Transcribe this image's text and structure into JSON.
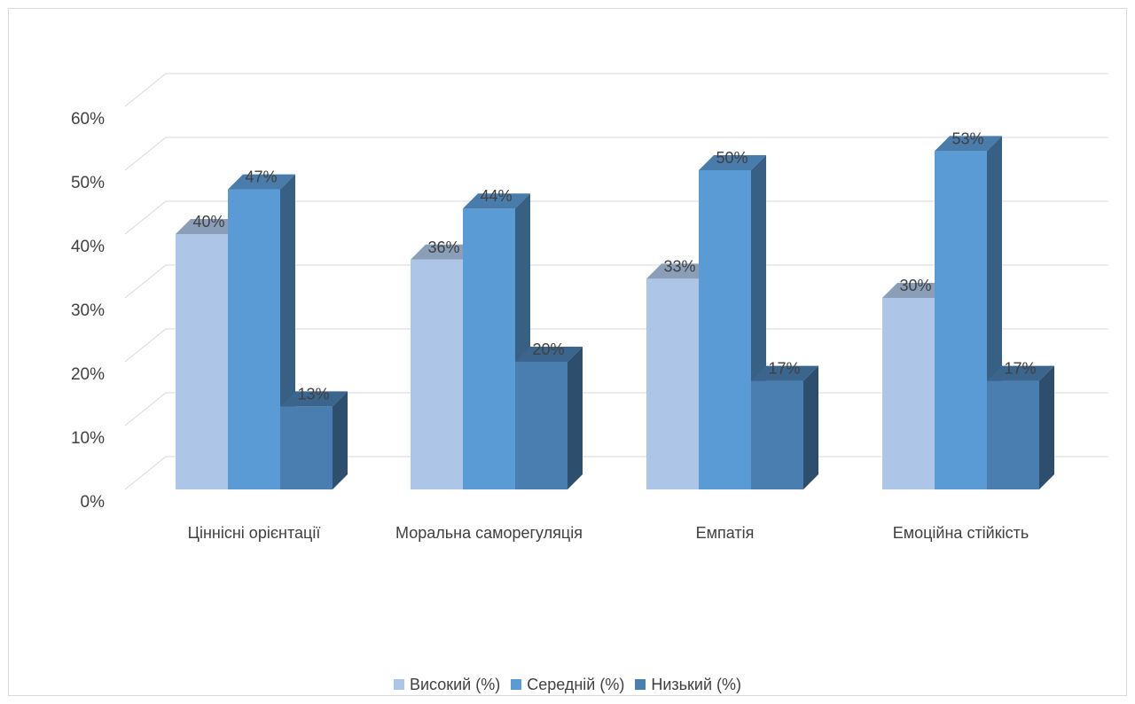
{
  "chart_data": {
    "type": "bar",
    "categories": [
      "Ціннісні орієнтації",
      "Моральна саморегуляція",
      "Емпатія",
      "Емоційна стійкість"
    ],
    "series": [
      {
        "name": "Високий (%)",
        "values": [
          40,
          36,
          33,
          30
        ],
        "labels": [
          "40%",
          "36%",
          "33%",
          "30%"
        ],
        "color": "#adc5e6"
      },
      {
        "name": "Середній (%)",
        "values": [
          47,
          44,
          50,
          53
        ],
        "labels": [
          "47%",
          "44%",
          "50%",
          "53%"
        ],
        "color": "#5b9bd5"
      },
      {
        "name": "Низький (%)",
        "values": [
          13,
          20,
          17,
          17
        ],
        "labels": [
          "13%",
          "20%",
          "17%",
          "17%"
        ],
        "color": "#4a7eb0"
      }
    ],
    "y_ticks": [
      "0%",
      "10%",
      "20%",
      "30%",
      "40%",
      "50%",
      "60%"
    ],
    "ylim": [
      0,
      60
    ],
    "grid": true,
    "legend_position": "bottom",
    "style": "3d-clustered-column"
  }
}
